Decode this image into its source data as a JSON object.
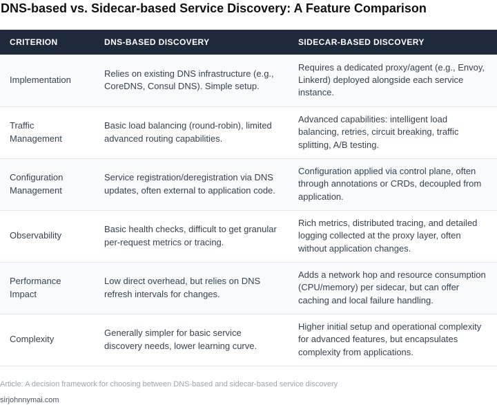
{
  "title": "DNS-based vs. Sidecar-based Service Discovery: A Feature Comparison",
  "table": {
    "headers": [
      "CRITERION",
      "DNS-BASED DISCOVERY",
      "SIDECAR-BASED DISCOVERY"
    ],
    "rows": [
      {
        "criterion": "Implementation",
        "dns": "Relies on existing DNS infrastructure (e.g., CoreDNS, Consul DNS). Simple setup.",
        "sidecar": "Requires a dedicated proxy/agent (e.g., Envoy, Linkerd) deployed alongside each service instance."
      },
      {
        "criterion": "Traffic Management",
        "dns": "Basic load balancing (round-robin), limited advanced routing capabilities.",
        "sidecar": "Advanced capabilities: intelligent load balancing, retries, circuit breaking, traffic splitting, A/B testing."
      },
      {
        "criterion": "Configuration Management",
        "dns": "Service registration/deregistration via DNS updates, often external to application code.",
        "sidecar": "Configuration applied via control plane, often through annotations or CRDs, decoupled from application."
      },
      {
        "criterion": "Observability",
        "dns": "Basic health checks, difficult to get granular per-request metrics or tracing.",
        "sidecar": "Rich metrics, distributed tracing, and detailed logging collected at the proxy layer, often without application changes."
      },
      {
        "criterion": "Performance Impact",
        "dns": "Low direct overhead, but relies on DNS refresh intervals for changes.",
        "sidecar": "Adds a network hop and resource consumption (CPU/memory) per sidecar, but can offer caching and local failure handling."
      },
      {
        "criterion": "Complexity",
        "dns": "Generally simpler for basic service discovery needs, lower learning curve.",
        "sidecar": "Higher initial setup and operational complexity for advanced features, but encapsulates complexity from applications."
      }
    ]
  },
  "footer": {
    "caption": "Article: A decision framework for choosing between DNS-based and sidecar-based service discovery",
    "site": "sirjohnnymai.com"
  }
}
